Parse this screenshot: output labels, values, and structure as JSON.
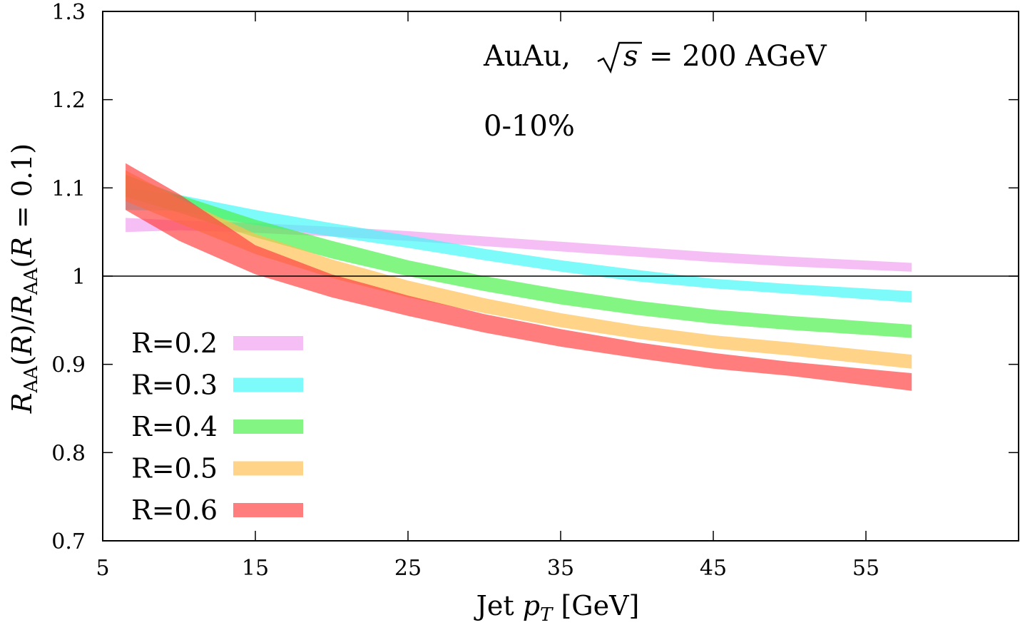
{
  "chart_data": {
    "type": "area",
    "xlabel": "Jet p_T [GeV]",
    "ylabel": "R_AA(R)/R_AA(R = 0.1)",
    "xlim": [
      5,
      65
    ],
    "ylim": [
      0.7,
      1.3
    ],
    "xticks": [
      "5",
      "15",
      "25",
      "35",
      "45",
      "55"
    ],
    "yticks": [
      "0.7",
      "0.8",
      "0.9",
      "1",
      "1.1",
      "1.2",
      "1.3"
    ],
    "reference_line": 1.0,
    "grid": false,
    "legend_position": "bottom-left",
    "annotations": [
      "AuAu, √s = 200 AGeV",
      "0-10%"
    ],
    "series": [
      {
        "name": "R=0.2",
        "color": "#f0a0f0",
        "x": [
          6.5,
          10,
          15,
          20,
          25,
          30,
          35,
          40,
          45,
          50,
          58
        ],
        "lower": [
          1.05,
          1.052,
          1.049,
          1.045,
          1.04,
          1.034,
          1.028,
          1.022,
          1.016,
          1.011,
          1.005
        ],
        "upper": [
          1.066,
          1.063,
          1.06,
          1.056,
          1.051,
          1.045,
          1.039,
          1.033,
          1.027,
          1.022,
          1.015
        ]
      },
      {
        "name": "R=0.3",
        "color": "#40f8f8",
        "x": [
          6.5,
          10,
          15,
          20,
          25,
          30,
          35,
          40,
          45,
          50,
          58
        ],
        "lower": [
          1.075,
          1.074,
          1.058,
          1.045,
          1.032,
          1.018,
          1.005,
          0.994,
          0.986,
          0.98,
          0.97
        ],
        "upper": [
          1.1,
          1.092,
          1.075,
          1.06,
          1.046,
          1.031,
          1.018,
          1.007,
          0.997,
          0.991,
          0.983
        ]
      },
      {
        "name": "R=0.4",
        "color": "#48f048",
        "x": [
          6.5,
          10,
          15,
          20,
          25,
          30,
          35,
          40,
          45,
          50,
          58
        ],
        "lower": [
          1.09,
          1.072,
          1.044,
          1.02,
          1.0,
          0.983,
          0.968,
          0.956,
          0.946,
          0.939,
          0.93
        ],
        "upper": [
          1.115,
          1.092,
          1.064,
          1.04,
          1.018,
          1.0,
          0.985,
          0.972,
          0.962,
          0.955,
          0.945
        ]
      },
      {
        "name": "R=0.5",
        "color": "#ffc050",
        "x": [
          6.5,
          10,
          15,
          20,
          25,
          30,
          35,
          40,
          45,
          50,
          58
        ],
        "lower": [
          1.085,
          1.06,
          1.025,
          0.998,
          0.976,
          0.958,
          0.942,
          0.929,
          0.918,
          0.91,
          0.895
        ],
        "upper": [
          1.12,
          1.088,
          1.048,
          1.019,
          0.995,
          0.975,
          0.958,
          0.944,
          0.933,
          0.925,
          0.911
        ]
      },
      {
        "name": "R=0.6",
        "color": "#ff4040",
        "x": [
          6.5,
          10,
          15,
          20,
          25,
          30,
          35,
          40,
          45,
          50,
          58
        ],
        "lower": [
          1.075,
          1.04,
          1.002,
          0.976,
          0.955,
          0.936,
          0.92,
          0.907,
          0.895,
          0.887,
          0.87
        ],
        "upper": [
          1.128,
          1.093,
          1.035,
          1.002,
          0.978,
          0.957,
          0.94,
          0.925,
          0.913,
          0.903,
          0.89
        ]
      }
    ]
  }
}
